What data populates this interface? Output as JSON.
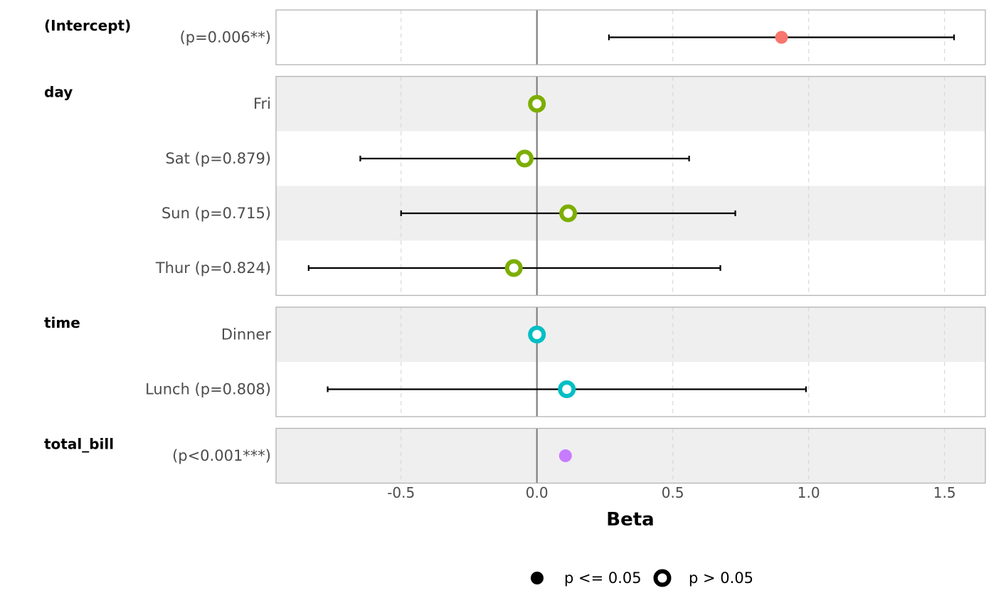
{
  "chart_data": {
    "type": "forest",
    "xlabel": "Beta",
    "xlim": [
      -0.96,
      1.65
    ],
    "x_ticks": [
      -0.5,
      0.0,
      0.5,
      1.0,
      1.5
    ],
    "x_tick_labels": [
      "-0.5",
      "0.0",
      "0.5",
      "1.0",
      "1.5"
    ],
    "reference_line": 0,
    "grid": "vertical-dashed",
    "legend": {
      "position": "bottom",
      "entries": [
        {
          "label": "p <= 0.05",
          "marker": "filled"
        },
        {
          "label": "p > 0.05",
          "marker": "hollow"
        }
      ]
    },
    "groups": [
      {
        "name": "(Intercept)",
        "color": "#F8766D",
        "rows": [
          {
            "label": "(p=0.006**)",
            "estimate": 0.9,
            "ci_low": 0.265,
            "ci_high": 1.535,
            "significant": true
          }
        ]
      },
      {
        "name": "day",
        "color": "#7CAE00",
        "rows": [
          {
            "label": "Fri",
            "estimate": 0.0,
            "significant": false
          },
          {
            "label": "Sat (p=0.879)",
            "estimate": -0.045,
            "ci_low": -0.65,
            "ci_high": 0.56,
            "significant": false
          },
          {
            "label": "Sun (p=0.715)",
            "estimate": 0.115,
            "ci_low": -0.5,
            "ci_high": 0.73,
            "significant": false
          },
          {
            "label": "Thur (p=0.824)",
            "estimate": -0.085,
            "ci_low": -0.84,
            "ci_high": 0.675,
            "significant": false
          }
        ]
      },
      {
        "name": "time",
        "color": "#00BFC4",
        "rows": [
          {
            "label": "Dinner",
            "estimate": 0.0,
            "significant": false
          },
          {
            "label": "Lunch (p=0.808)",
            "estimate": 0.11,
            "ci_low": -0.77,
            "ci_high": 0.99,
            "significant": false
          }
        ]
      },
      {
        "name": "total_bill",
        "color": "#C77CFF",
        "rows": [
          {
            "label": "(p<0.001***)",
            "estimate": 0.105,
            "significant": true
          }
        ]
      }
    ]
  }
}
